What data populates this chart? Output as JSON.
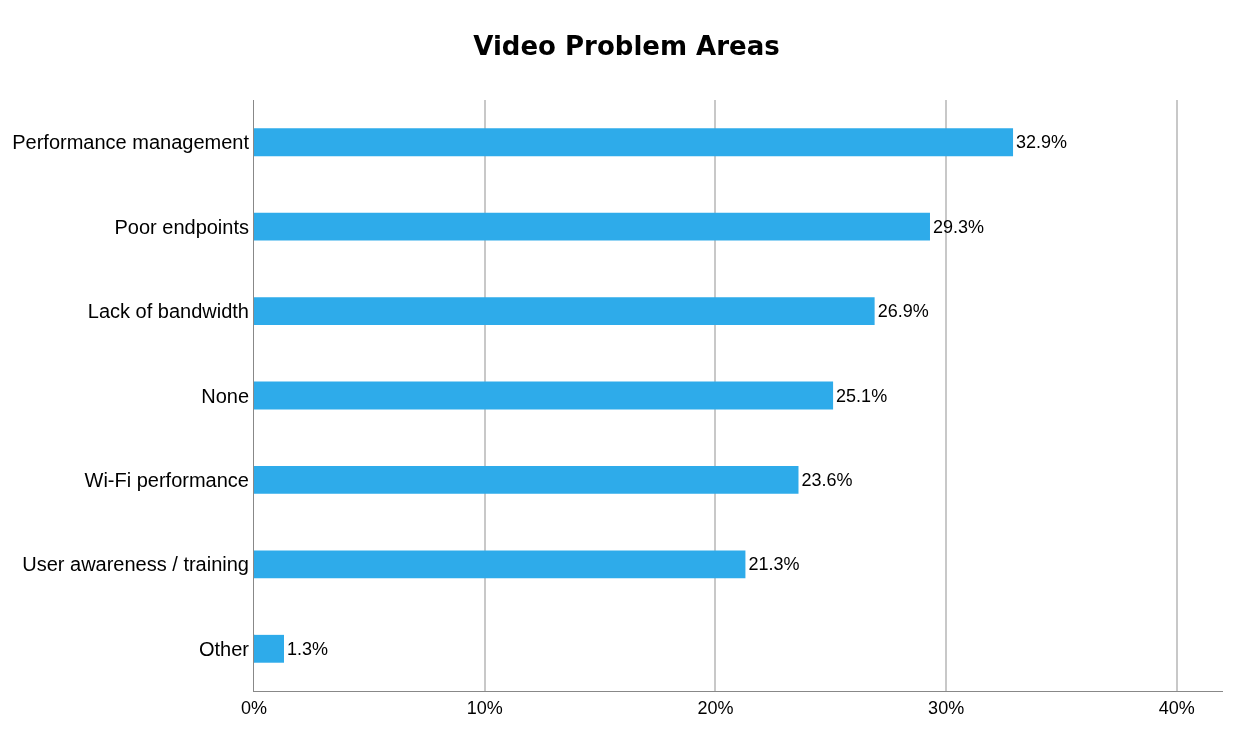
{
  "chart_data": {
    "type": "bar",
    "orientation": "horizontal",
    "title": "Video Problem Areas",
    "categories": [
      "Performance management",
      "Poor endpoints",
      "Lack of bandwidth",
      "None",
      "Wi-Fi performance",
      "User awareness / training",
      "Other"
    ],
    "values": [
      32.9,
      29.3,
      26.9,
      25.1,
      23.6,
      21.3,
      1.3
    ],
    "value_labels": [
      "32.9%",
      "29.3%",
      "26.9%",
      "25.1%",
      "23.6%",
      "21.3%",
      "1.3%"
    ],
    "color": "#2eabea",
    "xlim": [
      0,
      42
    ],
    "xticks": [
      {
        "value": 0,
        "label": "0%"
      },
      {
        "value": 10,
        "label": "10%"
      },
      {
        "value": 20,
        "label": "20%"
      },
      {
        "value": 30,
        "label": "30%"
      },
      {
        "value": 40,
        "label": "40%"
      }
    ],
    "grid": "x"
  }
}
